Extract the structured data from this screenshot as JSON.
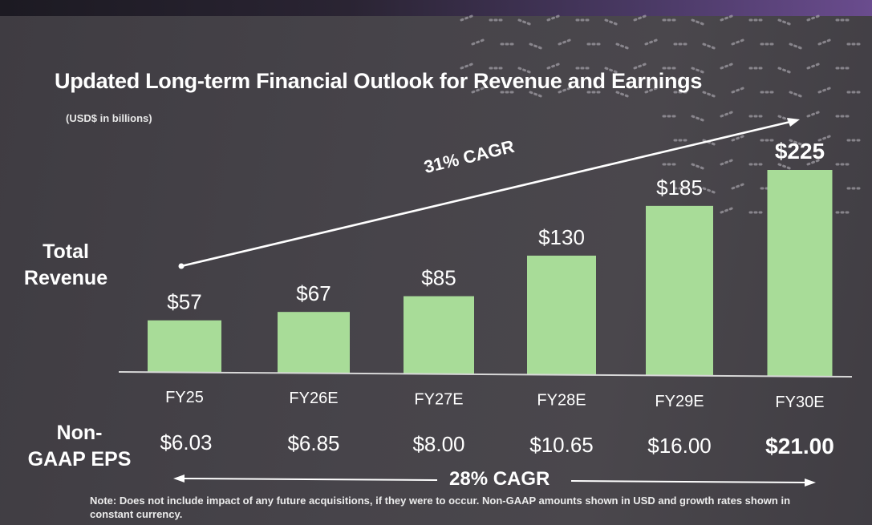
{
  "slide": {
    "title": "Updated Long-term Financial Outlook for Revenue and Earnings",
    "subtitle": "(USD$ in billions)",
    "revenue_row_label_line1": "Total",
    "revenue_row_label_line2": "Revenue",
    "eps_row_label_line1": "Non-",
    "eps_row_label_line2": "GAAP EPS",
    "revenue_cagr": "31% CAGR",
    "eps_cagr": "28% CAGR",
    "note": "Note: Does not include impact of any future acquisitions, if they were to occur. Non-GAAP amounts shown in USD and growth rates shown in constant currency.",
    "colors": {
      "bar": "#a8dc98",
      "background": "#47444a",
      "text": "#ffffff"
    }
  },
  "chart_data": {
    "type": "bar",
    "title": "Updated Long-term Financial Outlook for Revenue and Earnings",
    "ylabel": "Total Revenue",
    "unit": "USD$ in billions",
    "categories": [
      "FY25",
      "FY26E",
      "FY27E",
      "FY28E",
      "FY29E",
      "FY30E"
    ],
    "values": [
      57,
      67,
      85,
      130,
      185,
      225
    ],
    "value_labels": [
      "$57",
      "$67",
      "$85",
      "$130",
      "$185",
      "$225"
    ],
    "ylim": [
      0,
      225
    ],
    "grid": false,
    "secondary_row": {
      "name": "Non-GAAP EPS",
      "values": [
        6.03,
        6.85,
        8.0,
        10.65,
        16.0,
        21.0
      ],
      "labels": [
        "$6.03",
        "$6.85",
        "$8.00",
        "$10.65",
        "$16.00",
        "$21.00"
      ]
    },
    "annotations": [
      "31% CAGR",
      "28% CAGR"
    ]
  }
}
